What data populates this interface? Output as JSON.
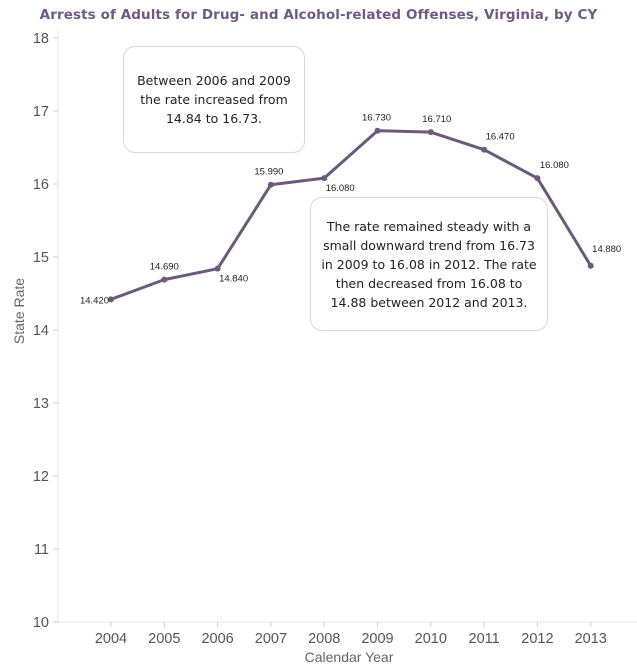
{
  "chart_data": {
    "type": "line",
    "title": "Arrests of Adults for Drug- and Alcohol-related Offenses, Virginia, by CY",
    "xlabel": "Calendar Year",
    "ylabel": "State Rate",
    "x": [
      "2004",
      "2005",
      "2006",
      "2007",
      "2008",
      "2009",
      "2010",
      "2011",
      "2012",
      "2013"
    ],
    "values": [
      14.42,
      14.69,
      14.84,
      15.99,
      16.08,
      16.73,
      16.71,
      16.47,
      16.08,
      14.88
    ],
    "data_labels": [
      "14.420",
      "14.690",
      "14.840",
      "15.990",
      "16.080",
      "16.730",
      "16.710",
      "16.470",
      "16.080",
      "14.880"
    ],
    "y_ticks": [
      "10",
      "11",
      "12",
      "13",
      "14",
      "15",
      "16",
      "17",
      "18"
    ],
    "ylim": [
      10,
      18
    ],
    "line_color": "#6b5a7b",
    "annotations": [
      "Between 2006 and 2009 the rate increased from 14.84 to 16.73.",
      "The rate remained steady with a small downward trend from 16.73 in 2009 to 16.08 in 2012. The rate then decreased from 16.08 to 14.88 between 2012 and 2013."
    ]
  }
}
